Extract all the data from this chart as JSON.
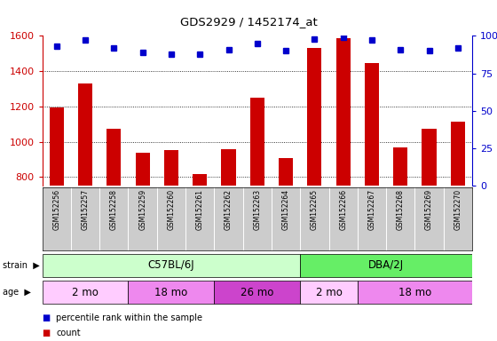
{
  "title": "GDS2929 / 1452174_at",
  "samples": [
    "GSM152256",
    "GSM152257",
    "GSM152258",
    "GSM152259",
    "GSM152260",
    "GSM152261",
    "GSM152262",
    "GSM152263",
    "GSM152264",
    "GSM152265",
    "GSM152266",
    "GSM152267",
    "GSM152268",
    "GSM152269",
    "GSM152270"
  ],
  "counts": [
    1195,
    1330,
    1075,
    940,
    955,
    815,
    960,
    1250,
    905,
    1530,
    1585,
    1445,
    970,
    1075,
    1115
  ],
  "percentile_ranks": [
    93,
    97,
    92,
    89,
    88,
    88,
    91,
    95,
    90,
    98,
    99,
    97,
    91,
    90,
    92
  ],
  "ylim_left": [
    750,
    1600
  ],
  "ylim_right": [
    0,
    100
  ],
  "yticks_left": [
    800,
    1000,
    1200,
    1400,
    1600
  ],
  "yticks_right": [
    0,
    25,
    50,
    75,
    100
  ],
  "bar_color": "#cc0000",
  "dot_color": "#0000cc",
  "bar_width": 0.5,
  "strain_labels": [
    "C57BL/6J",
    "DBA/2J"
  ],
  "strain_spans_samples": [
    9,
    6
  ],
  "strain_color_light": "#ccffcc",
  "strain_color_dark": "#66ee66",
  "age_groups": [
    {
      "label": "2 mo",
      "count": 3,
      "color": "#ffccff"
    },
    {
      "label": "18 mo",
      "count": 3,
      "color": "#ee88ee"
    },
    {
      "label": "26 mo",
      "count": 3,
      "color": "#cc44cc"
    },
    {
      "label": "2 mo",
      "count": 2,
      "color": "#ffccff"
    },
    {
      "label": "18 mo",
      "count": 4,
      "color": "#ee88ee"
    }
  ],
  "label_area_color": "#cccccc",
  "background_color": "#ffffff",
  "left_tick_color": "#cc0000",
  "right_tick_color": "#0000cc",
  "border_color": "#000000"
}
